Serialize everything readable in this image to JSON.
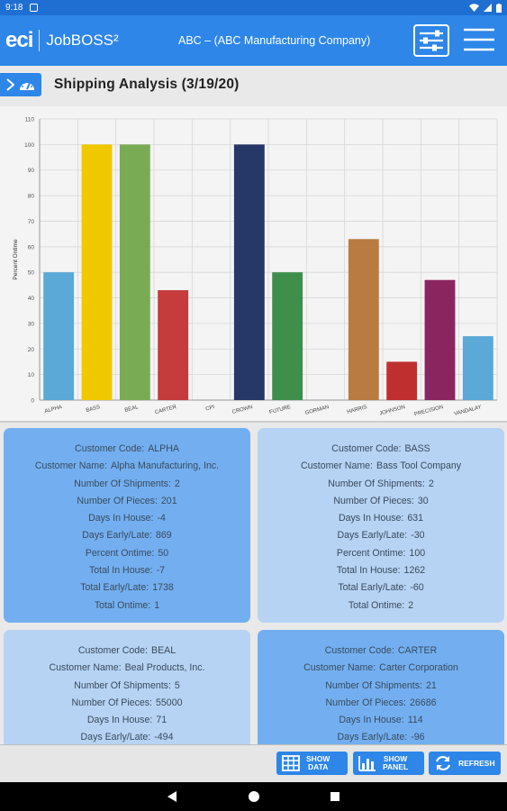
{
  "status": {
    "time": "9:18"
  },
  "app": {
    "logo_eci": "eci",
    "logo_product": "JobBOSS²",
    "company": "ABC – (ABC Manufacturing Company)"
  },
  "page": {
    "title": "Shipping Analysis (3/19/20)"
  },
  "chart_data": {
    "type": "bar",
    "title": "",
    "xlabel": "",
    "ylabel": "Percent Ontime",
    "ylim": [
      0,
      110
    ],
    "yticks": [
      0,
      10,
      20,
      30,
      40,
      50,
      60,
      70,
      80,
      90,
      100,
      110
    ],
    "grid": true,
    "categories": [
      "ALPHA",
      "BASS",
      "BEAL",
      "CARTER",
      "CPI",
      "CROWN",
      "FUTURE",
      "GORMAN",
      "HARRIS",
      "JOHNSON",
      "PRECISION",
      "VANDALAY"
    ],
    "values": [
      50,
      100,
      100,
      43,
      0,
      100,
      50,
      0,
      63,
      15,
      47,
      25
    ],
    "colors": [
      "#5aa9d6",
      "#f0c800",
      "#79ab55",
      "#c43c3c",
      "#888888",
      "#263867",
      "#3f8f4a",
      "#888888",
      "#b97b41",
      "#c02f2f",
      "#8b2560",
      "#5aa9d6"
    ]
  },
  "cards": [
    {
      "style": "dark",
      "fields": [
        {
          "label": "Customer Code:",
          "value": "ALPHA"
        },
        {
          "label": "Customer Name:",
          "value": "Alpha Manufacturing, Inc."
        },
        {
          "label": "Number Of Shipments:",
          "value": "2"
        },
        {
          "label": "Number Of Pieces:",
          "value": "201"
        },
        {
          "label": "Days In House:",
          "value": "-4"
        },
        {
          "label": "Days Early/Late:",
          "value": "869"
        },
        {
          "label": "Percent Ontime:",
          "value": "50"
        },
        {
          "label": "Total In House:",
          "value": "-7"
        },
        {
          "label": "Total Early/Late:",
          "value": "1738"
        },
        {
          "label": "Total Ontime:",
          "value": "1"
        }
      ]
    },
    {
      "style": "light",
      "fields": [
        {
          "label": "Customer Code:",
          "value": "BASS"
        },
        {
          "label": "Customer Name:",
          "value": "Bass Tool Company"
        },
        {
          "label": "Number Of Shipments:",
          "value": "2"
        },
        {
          "label": "Number Of Pieces:",
          "value": "30"
        },
        {
          "label": "Days In House:",
          "value": "631"
        },
        {
          "label": "Days Early/Late:",
          "value": "-30"
        },
        {
          "label": "Percent Ontime:",
          "value": "100"
        },
        {
          "label": "Total In House:",
          "value": "1262"
        },
        {
          "label": "Total Early/Late:",
          "value": "-60"
        },
        {
          "label": "Total Ontime:",
          "value": "2"
        }
      ]
    },
    {
      "style": "light",
      "fields": [
        {
          "label": "Customer Code:",
          "value": "BEAL"
        },
        {
          "label": "Customer Name:",
          "value": "Beal Products, Inc."
        },
        {
          "label": "Number Of Shipments:",
          "value": "5"
        },
        {
          "label": "Number Of Pieces:",
          "value": "55000"
        },
        {
          "label": "Days In House:",
          "value": "71"
        },
        {
          "label": "Days Early/Late:",
          "value": "-494"
        }
      ]
    },
    {
      "style": "dark",
      "fields": [
        {
          "label": "Customer Code:",
          "value": "CARTER"
        },
        {
          "label": "Customer Name:",
          "value": "Carter Corporation"
        },
        {
          "label": "Number Of Shipments:",
          "value": "21"
        },
        {
          "label": "Number Of Pieces:",
          "value": "26686"
        },
        {
          "label": "Days In House:",
          "value": "114"
        },
        {
          "label": "Days Early/Late:",
          "value": "-96"
        }
      ]
    }
  ],
  "actions": {
    "show_data": [
      "SHOW",
      "DATA"
    ],
    "show_panel": [
      "SHOW",
      "PANEL"
    ],
    "refresh": "REFRESH"
  }
}
